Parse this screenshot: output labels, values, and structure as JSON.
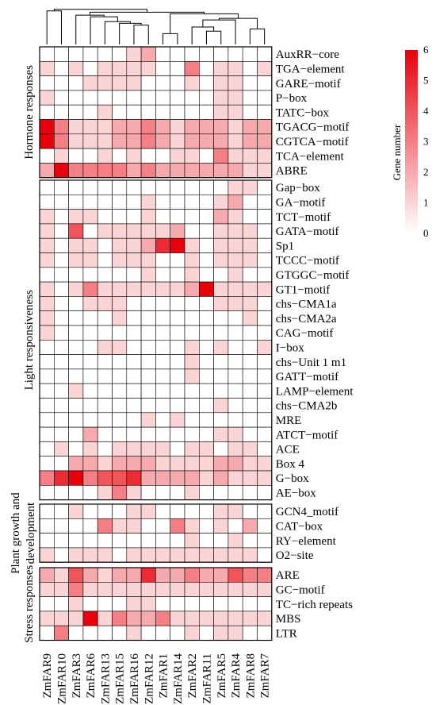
{
  "chart_data": {
    "type": "heatmap",
    "columns": [
      "ZmFAR9",
      "ZmFAR10",
      "ZmFAR3",
      "ZmFAR6",
      "ZmFAR13",
      "ZmFAR15",
      "ZmFAR16",
      "ZmFAR12",
      "ZmFAR1",
      "ZmFAR14",
      "ZmFAR2",
      "ZmFAR11",
      "ZmFAR5",
      "ZmFAR4",
      "ZmFAR8",
      "ZmFAR7"
    ],
    "groups": [
      {
        "name": "Hormone responses",
        "rows": [
          {
            "label": "AuxRR−core",
            "values": [
              0,
              0,
              0,
              0,
              0,
              0,
              1,
              2,
              0,
              0,
              0,
              0,
              0,
              0,
              0,
              0
            ]
          },
          {
            "label": "TGA−element",
            "values": [
              1,
              0,
              1,
              0,
              1,
              1,
              1,
              1,
              0,
              0,
              3,
              0,
              1,
              1,
              0,
              1
            ]
          },
          {
            "label": "GARE−motif",
            "values": [
              0,
              0,
              0,
              1,
              1,
              1,
              1,
              0,
              0,
              0,
              1,
              0,
              1,
              1,
              0,
              0
            ]
          },
          {
            "label": "P−box",
            "values": [
              1,
              0,
              0,
              0,
              0,
              0,
              0,
              0,
              0,
              0,
              0,
              0,
              1,
              1,
              0,
              0
            ]
          },
          {
            "label": "TATC−box",
            "values": [
              0,
              0,
              0,
              0,
              1,
              0,
              0,
              0,
              0,
              0,
              0,
              0,
              1,
              1,
              0,
              0
            ]
          },
          {
            "label": "TGACG−motif",
            "values": [
              6,
              3,
              1,
              1,
              1,
              2,
              2,
              3,
              2,
              1,
              2,
              2,
              2,
              1,
              2,
              2
            ]
          },
          {
            "label": "CGTCA−motif",
            "values": [
              6,
              3,
              1,
              1,
              1,
              2,
              2,
              3,
              2,
              1,
              2,
              2,
              2,
              1,
              2,
              2
            ]
          },
          {
            "label": "TCA−element",
            "values": [
              0,
              1,
              0,
              0,
              1,
              0,
              1,
              0,
              0,
              1,
              1,
              0,
              3,
              1,
              1,
              1
            ]
          },
          {
            "label": "ABRE",
            "values": [
              2,
              6,
              3,
              3,
              3,
              3,
              2,
              3,
              2,
              2,
              2,
              2,
              2,
              2,
              1,
              1
            ]
          }
        ]
      },
      {
        "name": "Light responsiveness",
        "rows": [
          {
            "label": "Gap−box",
            "values": [
              0,
              0,
              0,
              0,
              0,
              0,
              0,
              0,
              0,
              0,
              0,
              0,
              0,
              1,
              1,
              0
            ]
          },
          {
            "label": "GA−motif",
            "values": [
              0,
              0,
              0,
              0,
              0,
              0,
              0,
              1,
              0,
              0,
              0,
              0,
              1,
              2,
              0,
              0
            ]
          },
          {
            "label": "TCT−motif",
            "values": [
              1,
              0,
              1,
              1,
              0,
              0,
              0,
              1,
              0,
              0,
              0,
              0,
              2,
              1,
              0,
              0
            ]
          },
          {
            "label": "GATA−motif",
            "values": [
              1,
              0,
              4,
              0,
              1,
              1,
              1,
              1,
              1,
              2,
              0,
              0,
              1,
              1,
              1,
              0
            ]
          },
          {
            "label": "Sp1",
            "values": [
              1,
              0,
              1,
              1,
              0,
              1,
              1,
              2,
              5,
              6,
              1,
              0,
              1,
              1,
              1,
              0
            ]
          },
          {
            "label": "TCCC−motif",
            "values": [
              1,
              0,
              1,
              1,
              0,
              1,
              1,
              1,
              0,
              0,
              1,
              0,
              1,
              1,
              1,
              0
            ]
          },
          {
            "label": "GTGGC−motif",
            "values": [
              0,
              0,
              0,
              0,
              0,
              0,
              0,
              1,
              0,
              0,
              1,
              0,
              0,
              1,
              0,
              0
            ]
          },
          {
            "label": "GT1−motif",
            "values": [
              1,
              0,
              1,
              3,
              1,
              1,
              1,
              1,
              1,
              1,
              2,
              6,
              1,
              1,
              1,
              1
            ]
          },
          {
            "label": "chs−CMA1a",
            "values": [
              1,
              0,
              0,
              1,
              1,
              1,
              0,
              0,
              0,
              0,
              0,
              0,
              1,
              1,
              1,
              0
            ]
          },
          {
            "label": "chs−CMA2a",
            "values": [
              1,
              0,
              0,
              0,
              0,
              1,
              0,
              0,
              0,
              0,
              0,
              0,
              0,
              0,
              1,
              0
            ]
          },
          {
            "label": "CAG−motif",
            "values": [
              1,
              0,
              0,
              0,
              0,
              0,
              0,
              0,
              0,
              0,
              0,
              0,
              0,
              0,
              0,
              0
            ]
          },
          {
            "label": "I−box",
            "values": [
              0,
              0,
              0,
              0,
              1,
              1,
              0,
              0,
              0,
              0,
              1,
              0,
              1,
              0,
              0,
              1
            ]
          },
          {
            "label": "chs−Unit 1 m1",
            "values": [
              0,
              0,
              0,
              0,
              0,
              0,
              0,
              0,
              0,
              0,
              1,
              0,
              0,
              0,
              0,
              0
            ]
          },
          {
            "label": "GATT−motif",
            "values": [
              0,
              0,
              0,
              0,
              0,
              0,
              0,
              0,
              0,
              0,
              1,
              0,
              0,
              0,
              0,
              0
            ]
          },
          {
            "label": "LAMP−element",
            "values": [
              0,
              0,
              1,
              0,
              0,
              0,
              0,
              0,
              0,
              0,
              0,
              0,
              0,
              0,
              0,
              0
            ]
          },
          {
            "label": "chs−CMA2b",
            "values": [
              0,
              0,
              0,
              0,
              0,
              0,
              0,
              0,
              0,
              0,
              0,
              0,
              1,
              0,
              0,
              0
            ]
          },
          {
            "label": "MRE",
            "values": [
              0,
              0,
              0,
              0,
              0,
              0,
              0,
              1,
              0,
              1,
              0,
              0,
              0,
              0,
              0,
              0
            ]
          },
          {
            "label": "ATCT−motif",
            "values": [
              0,
              0,
              0,
              2,
              0,
              0,
              0,
              0,
              0,
              0,
              0,
              0,
              1,
              1,
              0,
              0
            ]
          },
          {
            "label": "ACE",
            "values": [
              0,
              1,
              0,
              1,
              0,
              1,
              1,
              1,
              1,
              0,
              1,
              1,
              0,
              1,
              1,
              0
            ]
          },
          {
            "label": "Box 4",
            "values": [
              0,
              0,
              2,
              2,
              1,
              2,
              2,
              2,
              1,
              1,
              1,
              1,
              2,
              2,
              1,
              1
            ]
          },
          {
            "label": "G−box",
            "values": [
              3,
              5,
              6,
              3,
              4,
              4,
              5,
              2,
              2,
              2,
              2,
              1,
              2,
              1,
              1,
              1
            ]
          },
          {
            "label": "AE−box",
            "values": [
              0,
              0,
              0,
              0,
              1,
              3,
              1,
              0,
              0,
              0,
              1,
              0,
              0,
              0,
              0,
              0
            ]
          }
        ]
      },
      {
        "name": "Plant growth and development",
        "rows": [
          {
            "label": "GCN4_motif",
            "values": [
              0,
              0,
              1,
              0,
              0,
              0,
              1,
              1,
              0,
              0,
              0,
              0,
              1,
              1,
              0,
              0
            ]
          },
          {
            "label": "CAT−box",
            "values": [
              0,
              0,
              0,
              0,
              3,
              1,
              1,
              0,
              0,
              3,
              1,
              0,
              1,
              0,
              2,
              0
            ]
          },
          {
            "label": "RY−element",
            "values": [
              0,
              0,
              0,
              0,
              0,
              0,
              0,
              0,
              0,
              0,
              1,
              0,
              0,
              1,
              0,
              0
            ]
          },
          {
            "label": "O2−site",
            "values": [
              1,
              0,
              1,
              1,
              1,
              0,
              1,
              1,
              1,
              1,
              1,
              1,
              1,
              1,
              1,
              0
            ]
          }
        ]
      },
      {
        "name": "Stress responses",
        "rows": [
          {
            "label": "ARE",
            "values": [
              2,
              1,
              4,
              2,
              1,
              2,
              2,
              5,
              2,
              2,
              3,
              2,
              2,
              4,
              3,
              3
            ]
          },
          {
            "label": "GC−motif",
            "values": [
              1,
              1,
              3,
              1,
              1,
              1,
              1,
              1,
              1,
              1,
              1,
              1,
              1,
              1,
              1,
              1
            ]
          },
          {
            "label": "TC−rich repeats",
            "values": [
              0,
              0,
              1,
              0,
              0,
              0,
              1,
              1,
              0,
              0,
              0,
              0,
              0,
              0,
              0,
              0
            ]
          },
          {
            "label": "MBS",
            "values": [
              1,
              1,
              1,
              6,
              1,
              3,
              2,
              2,
              3,
              1,
              1,
              1,
              1,
              1,
              1,
              1
            ]
          },
          {
            "label": "LTR",
            "values": [
              0,
              3,
              0,
              0,
              0,
              0,
              1,
              0,
              0,
              0,
              1,
              0,
              1,
              1,
              0,
              0
            ]
          }
        ]
      }
    ],
    "colorbar": {
      "title": "Gene number",
      "ticks": [
        0,
        1,
        2,
        3,
        4,
        5,
        6
      ],
      "range": [
        0,
        6
      ],
      "low_color": "#ffffff",
      "high_color": "#e8000b"
    },
    "dendrogram_merges": [
      [
        8,
        9
      ],
      [
        11,
        12
      ],
      [
        14,
        15
      ],
      [
        10,
        17
      ],
      [
        6,
        7
      ],
      [
        5,
        20
      ],
      [
        4,
        21
      ],
      [
        13,
        19
      ],
      [
        18,
        23
      ],
      [
        3,
        22
      ],
      [
        2,
        25
      ],
      [
        16,
        24
      ],
      [
        26,
        27
      ],
      [
        0,
        1
      ],
      [
        28,
        29
      ]
    ]
  }
}
